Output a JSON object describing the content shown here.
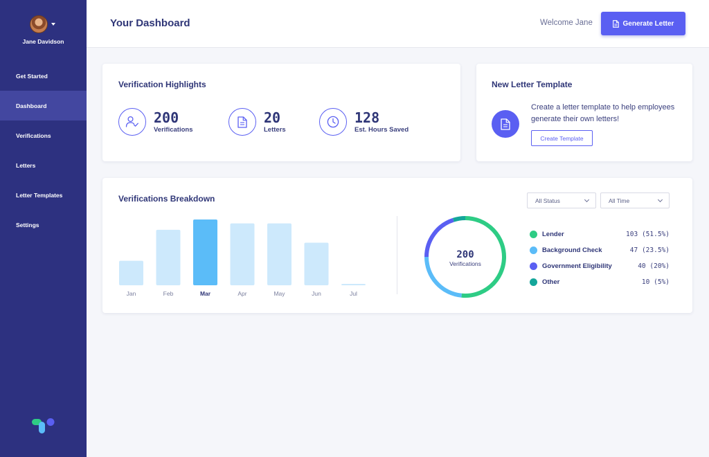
{
  "sidebar": {
    "user_name": "Jane Davidson",
    "items": [
      {
        "label": "Get Started",
        "active": false
      },
      {
        "label": "Dashboard",
        "active": true
      },
      {
        "label": "Verifications",
        "active": false
      },
      {
        "label": "Letters",
        "active": false
      },
      {
        "label": "Letter Templates",
        "active": false
      },
      {
        "label": "Settings",
        "active": false
      }
    ]
  },
  "header": {
    "title": "Your Dashboard",
    "welcome": "Welcome Jane",
    "generate_label": "Generate Letter"
  },
  "highlights": {
    "title": "Verification Highlights",
    "stats": [
      {
        "value": "200",
        "label": "Verifications",
        "icon": "user-check-icon"
      },
      {
        "value": "20",
        "label": "Letters",
        "icon": "document-icon"
      },
      {
        "value": "128",
        "label": "Est. Hours Saved",
        "icon": "clock-icon"
      }
    ]
  },
  "template": {
    "title": "New Letter Template",
    "description": "Create a letter template to help employees generate their own letters!",
    "button_label": "Create Template"
  },
  "breakdown": {
    "title": "Verifications Breakdown",
    "status_filter": "All Status",
    "time_filter": "All Time"
  },
  "chart_data": [
    {
      "type": "bar",
      "categories": [
        "Jan",
        "Feb",
        "Mar",
        "Apr",
        "May",
        "Jun",
        "Jul"
      ],
      "values": [
        19,
        43,
        51,
        48,
        48,
        33,
        1
      ],
      "highlighted": "Mar",
      "colors": {
        "bar": "#cde9fc",
        "highlight": "#5bbcf8"
      }
    },
    {
      "type": "pie",
      "center_value": "200",
      "center_label": "Verifications",
      "slices": [
        {
          "name": "Lender",
          "count": "103",
          "pct": "(51.5%)",
          "value": 51.5,
          "color": "#2ecc85"
        },
        {
          "name": "Background Check",
          "count": "47",
          "pct": "(23.5%)",
          "value": 23.5,
          "color": "#5bbcf8"
        },
        {
          "name": "Government Eligibility",
          "count": "40",
          "pct": "(20%)",
          "value": 20,
          "color": "#5a5ff2"
        },
        {
          "name": "Other",
          "count": "10",
          "pct": "(5%)",
          "value": 5,
          "color": "#14a69a"
        }
      ]
    }
  ]
}
